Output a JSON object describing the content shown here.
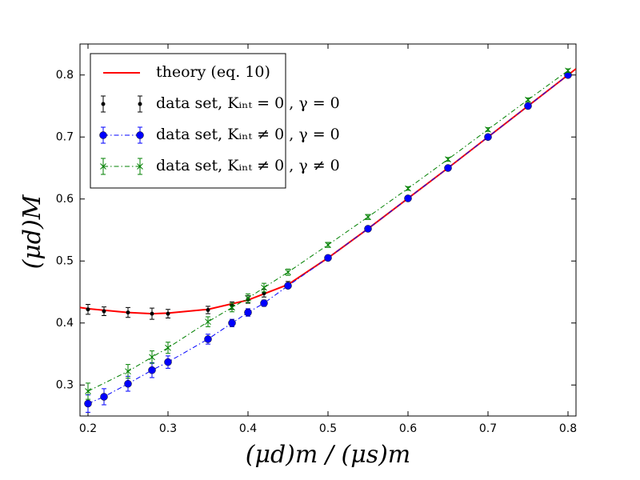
{
  "chart_data": {
    "type": "errorbar",
    "xlabel": "(μd)m / (μs)m",
    "ylabel": "(μd)M",
    "xlim": [
      0.19,
      0.81
    ],
    "ylim": [
      0.25,
      0.85
    ],
    "xticks": [
      0.2,
      0.3,
      0.4,
      0.5,
      0.6,
      0.7,
      0.8
    ],
    "yticks": [
      0.3,
      0.4,
      0.5,
      0.6,
      0.7,
      0.8
    ],
    "legend": "upper left",
    "series": [
      {
        "name": "theory (eq. 10)",
        "color": "#ff0000",
        "line": "solid",
        "marker": "none",
        "x": [
          0.19,
          0.2,
          0.25,
          0.28,
          0.3,
          0.35,
          0.4,
          0.45,
          0.5,
          0.55,
          0.6,
          0.65,
          0.7,
          0.75,
          0.8,
          0.81
        ],
        "values": [
          0.425,
          0.423,
          0.417,
          0.415,
          0.416,
          0.422,
          0.437,
          0.462,
          0.505,
          0.552,
          0.601,
          0.65,
          0.7,
          0.75,
          0.8,
          0.81
        ]
      },
      {
        "name": "data set, Kᵢₙₜ = 0 , γ = 0",
        "color": "#000000",
        "line": "none",
        "marker": "point",
        "x": [
          0.2,
          0.22,
          0.25,
          0.28,
          0.3,
          0.35,
          0.38,
          0.4,
          0.42,
          0.45
        ],
        "values": [
          0.422,
          0.419,
          0.417,
          0.415,
          0.415,
          0.421,
          0.428,
          0.438,
          0.448,
          0.462
        ],
        "errors": [
          0.008,
          0.007,
          0.008,
          0.009,
          0.007,
          0.006,
          0.006,
          0.006,
          0.006,
          0.005
        ]
      },
      {
        "name": "data set, Kᵢₙₜ ≠ 0 , γ = 0",
        "color": "#0000ff",
        "line": "dashdot",
        "marker": "circle",
        "x": [
          0.2,
          0.22,
          0.25,
          0.28,
          0.3,
          0.35,
          0.38,
          0.4,
          0.42,
          0.45,
          0.5,
          0.55,
          0.6,
          0.65,
          0.7,
          0.75,
          0.8
        ],
        "values": [
          0.27,
          0.281,
          0.302,
          0.324,
          0.337,
          0.374,
          0.4,
          0.417,
          0.432,
          0.46,
          0.505,
          0.552,
          0.601,
          0.65,
          0.7,
          0.75,
          0.8
        ],
        "errors": [
          0.014,
          0.013,
          0.012,
          0.012,
          0.01,
          0.008,
          0.006,
          0.006,
          0.005,
          0.004,
          0.004,
          0.004,
          0.003,
          0.003,
          0.003,
          0.003,
          0.003
        ]
      },
      {
        "name": "data set, Kᵢₙₜ ≠ 0 , γ ≠ 0",
        "color": "#008000",
        "line": "dashdot",
        "marker": "x",
        "x": [
          0.2,
          0.25,
          0.28,
          0.3,
          0.35,
          0.38,
          0.4,
          0.42,
          0.45,
          0.5,
          0.55,
          0.6,
          0.65,
          0.7,
          0.75,
          0.8
        ],
        "values": [
          0.29,
          0.322,
          0.345,
          0.36,
          0.402,
          0.425,
          0.44,
          0.457,
          0.482,
          0.526,
          0.571,
          0.617,
          0.664,
          0.712,
          0.76,
          0.807
        ],
        "errors": [
          0.013,
          0.011,
          0.01,
          0.009,
          0.008,
          0.007,
          0.007,
          0.007,
          0.005,
          0.004,
          0.004,
          0.003,
          0.003,
          0.003,
          0.003,
          0.003
        ]
      }
    ]
  }
}
